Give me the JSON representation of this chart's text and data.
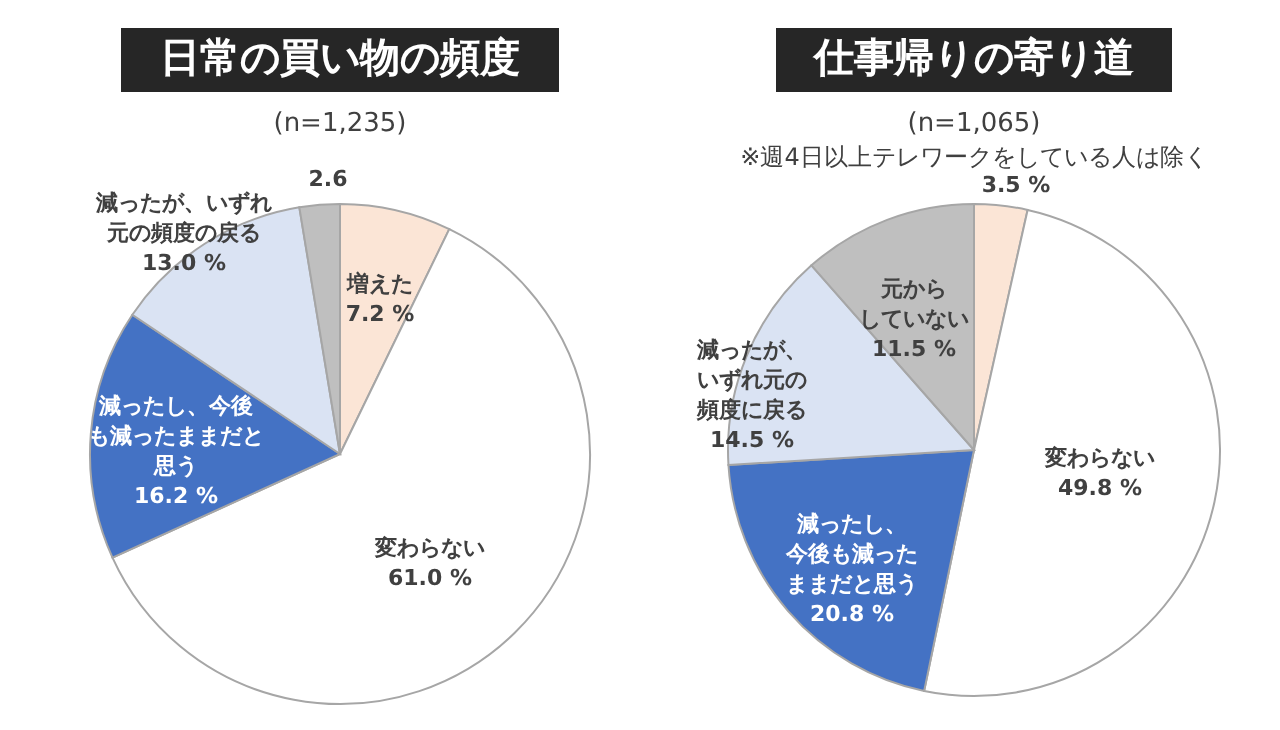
{
  "chart_data": [
    {
      "type": "pie",
      "title": "日常の買い物の頻度",
      "subtitle": "(n=1,235)",
      "categories": [
        "増えた",
        "変わらない",
        "減ったし、今後も減ったままだと思う",
        "減ったが、いずれ元の頻度の戻る",
        null
      ],
      "values": [
        7.2,
        61.0,
        16.2,
        13.0,
        2.6
      ],
      "value_labels": [
        "7.2 %",
        "61.0 %",
        "16.2 %",
        "13.0 %",
        "2.6"
      ],
      "colors": [
        "#fbe5d6",
        "#ffffff",
        "#4472c4",
        "#dae3f3",
        "#bfbfbf"
      ]
    },
    {
      "type": "pie",
      "title": "仕事帰りの寄り道",
      "subtitle": "(n=1,065)",
      "annotations": [
        "※週4日以上テレワークをしている人は除く"
      ],
      "categories": [
        null,
        "変わらない",
        "減ったし、今後も減ったままだと思う",
        "減ったが、いずれ元の頻度に戻る",
        "元からしていない"
      ],
      "values": [
        3.5,
        49.8,
        20.8,
        14.5,
        11.5
      ],
      "value_labels": [
        "3.5 %",
        "49.8 %",
        "20.8 %",
        "14.5 %",
        "11.5 %"
      ],
      "colors": [
        "#fbe5d6",
        "#ffffff",
        "#4472c4",
        "#dae3f3",
        "#bfbfbf"
      ]
    }
  ]
}
